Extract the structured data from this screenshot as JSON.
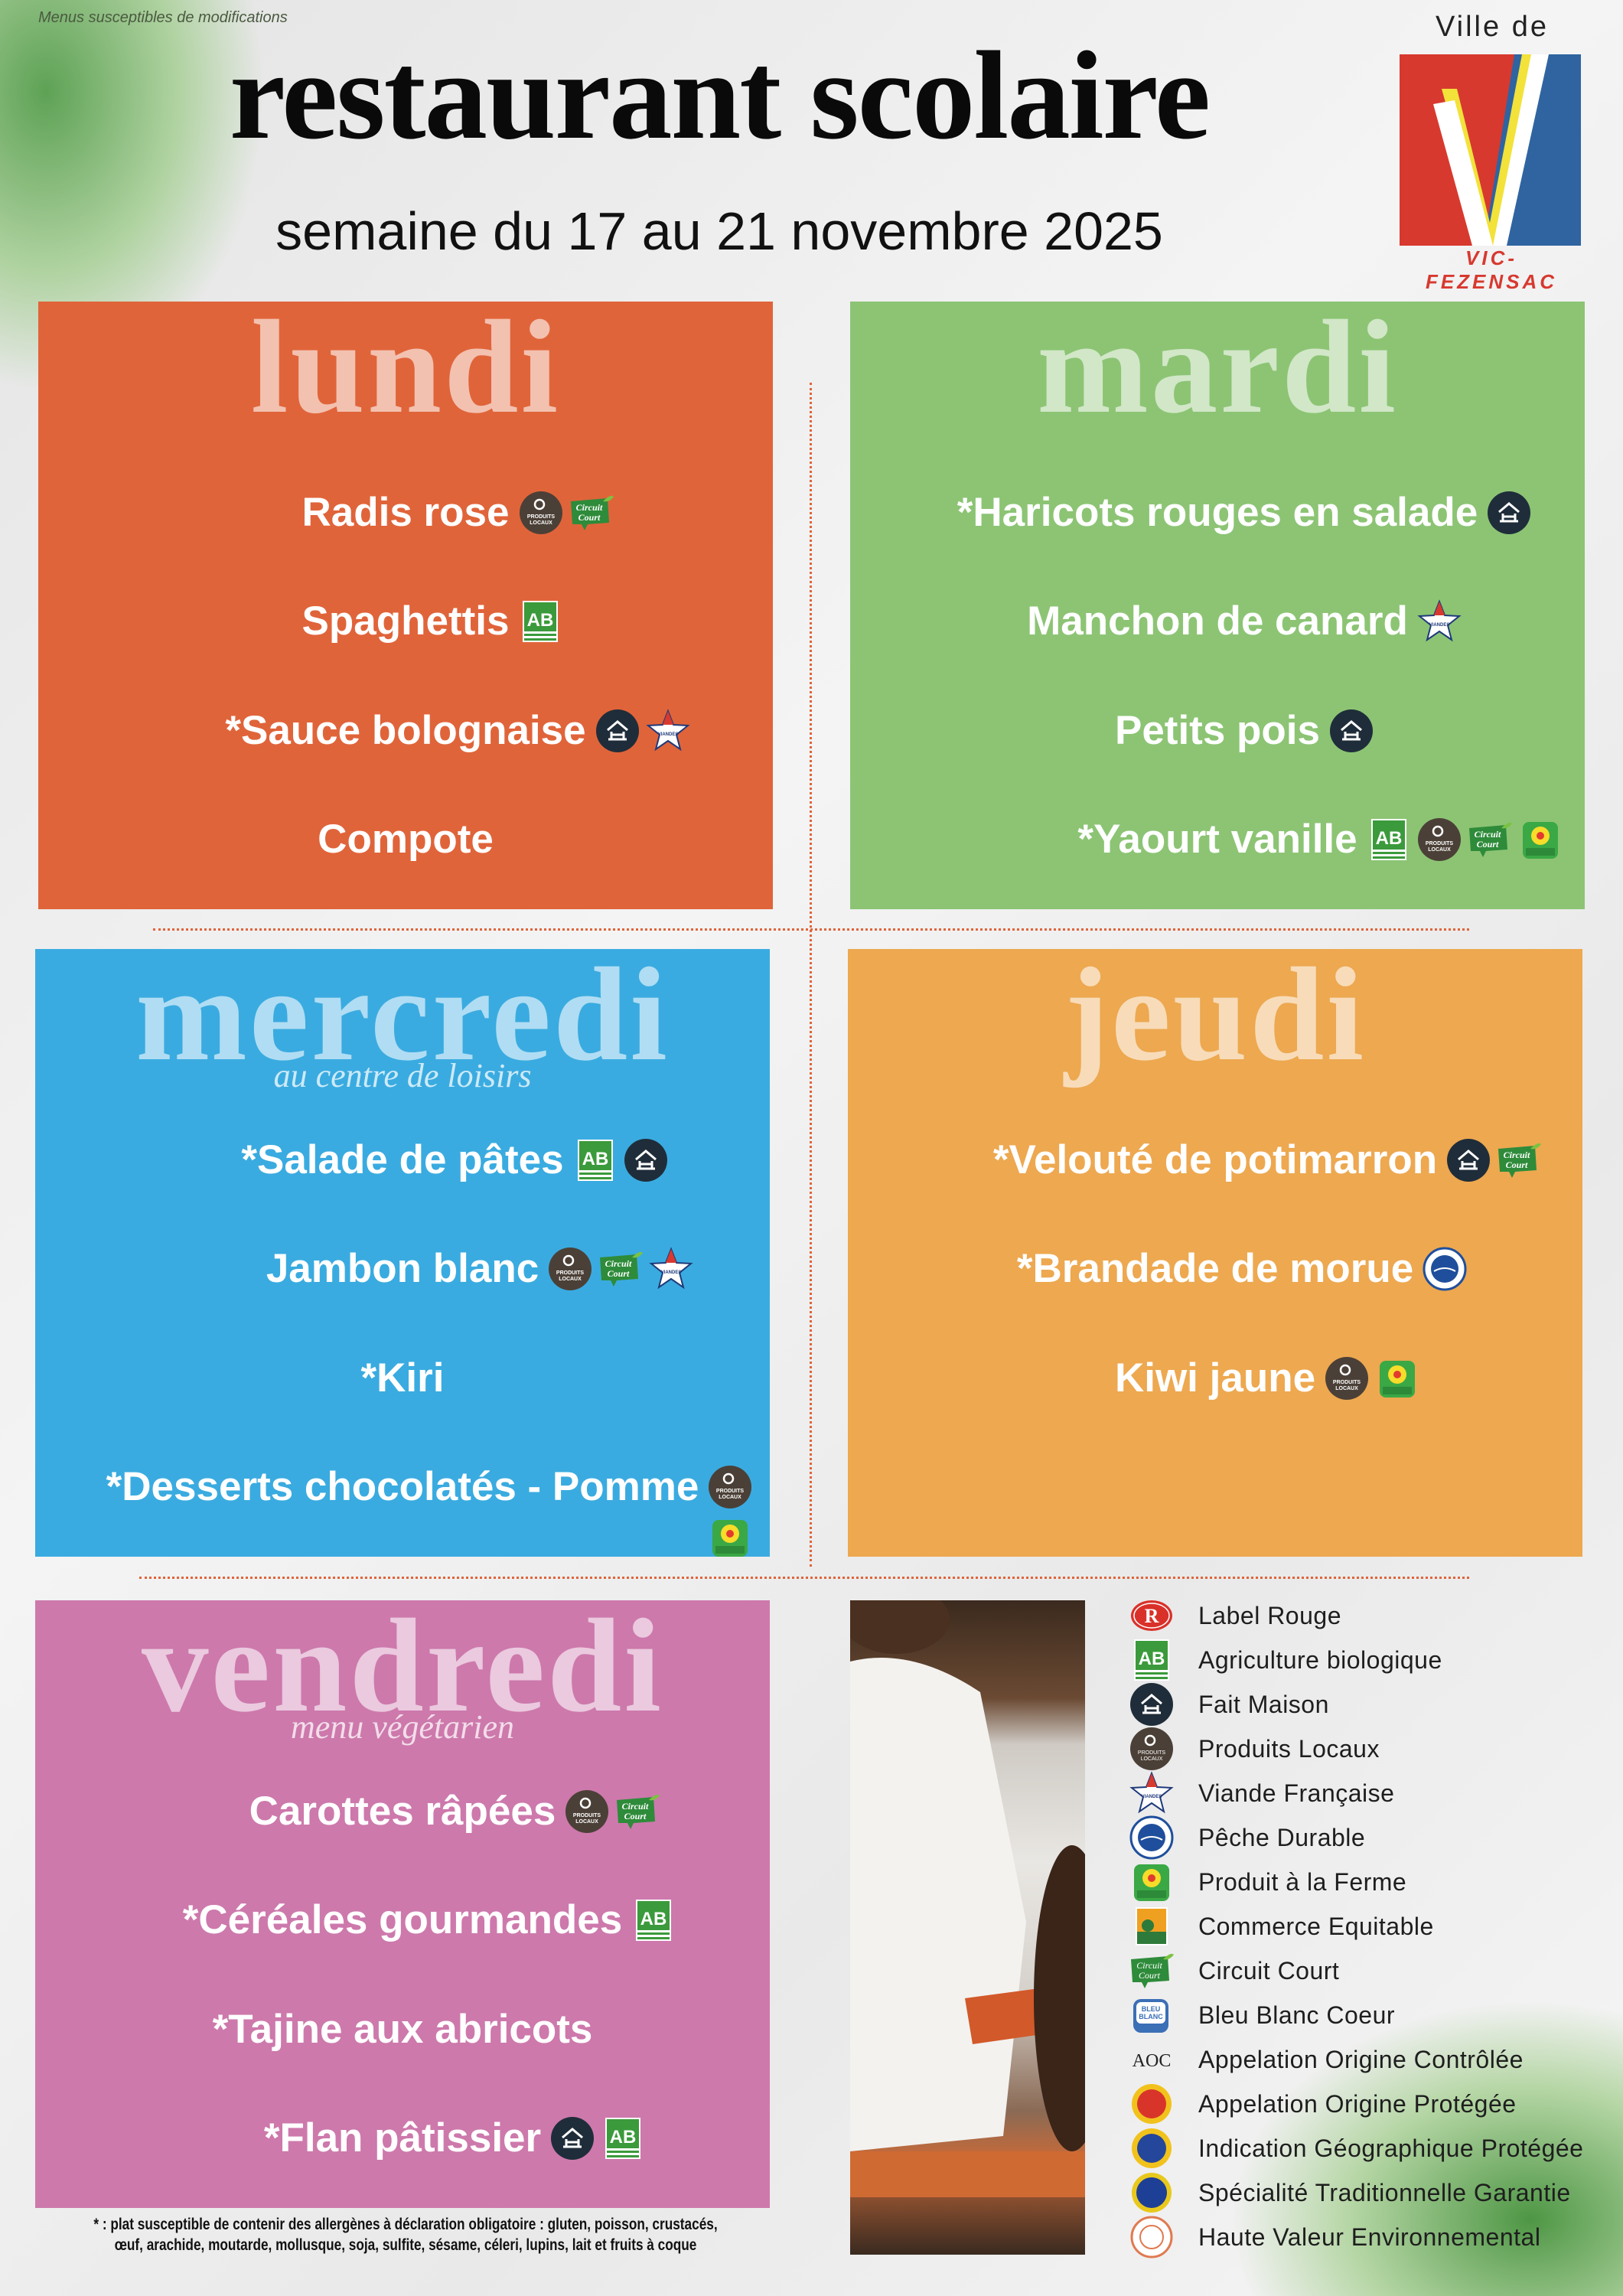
{
  "header": {
    "disclaimer": "Menus susceptibles de modifications",
    "title": "restaurant scolaire",
    "subtitle": "semaine du 17 au 21 novembre 2025",
    "logo": {
      "top": "Ville de",
      "name": "VIC-FEZENSAC",
      "colors": [
        "#d7392f",
        "#ffffff",
        "#f2e23a",
        "#2f64a0"
      ]
    }
  },
  "days": [
    {
      "key": "lundi",
      "title": "lundi",
      "color": "#e0643a",
      "items": [
        {
          "label": "Radis rose",
          "icons": [
            "produits-locaux",
            "circuit-court"
          ]
        },
        {
          "label": "Spaghettis",
          "icons": [
            "agriculture-biologique"
          ]
        },
        {
          "label": "*Sauce bolognaise",
          "icons": [
            "fait-maison",
            "viande-francaise"
          ]
        },
        {
          "label": "Compote",
          "icons": []
        }
      ]
    },
    {
      "key": "mardi",
      "title": "mardi",
      "color": "#8cc474",
      "items": [
        {
          "label": "*Haricots rouges en salade",
          "icons": [
            "fait-maison"
          ]
        },
        {
          "label": "Manchon de canard",
          "icons": [
            "viande-francaise"
          ]
        },
        {
          "label": "Petits pois",
          "icons": [
            "fait-maison"
          ]
        },
        {
          "label": "*Yaourt vanille",
          "icons": [
            "agriculture-biologique",
            "produits-locaux",
            "circuit-court",
            "produit-a-la-ferme"
          ]
        }
      ]
    },
    {
      "key": "mercredi",
      "title": "mercredi",
      "subtitle": "au centre de loisirs",
      "color": "#3aabe0",
      "items": [
        {
          "label": "*Salade de pâtes",
          "icons": [
            "agriculture-biologique",
            "fait-maison"
          ]
        },
        {
          "label": "Jambon blanc",
          "icons": [
            "produits-locaux",
            "circuit-court",
            "viande-francaise"
          ]
        },
        {
          "label": "*Kiri",
          "icons": []
        },
        {
          "label": "*Desserts chocolatés - Pomme",
          "icons": [
            "produits-locaux",
            "produit-a-la-ferme"
          ]
        }
      ]
    },
    {
      "key": "jeudi",
      "title": "jeudi",
      "color": "#eda850",
      "items": [
        {
          "label": "*Velouté de potimarron",
          "icons": [
            "fait-maison",
            "circuit-court"
          ]
        },
        {
          "label": "*Brandade de morue",
          "icons": [
            "peche-durable"
          ]
        },
        {
          "label": "Kiwi jaune",
          "icons": [
            "produits-locaux",
            "produit-a-la-ferme"
          ]
        }
      ]
    },
    {
      "key": "vendredi",
      "title": "vendredi",
      "subtitle": "menu végétarien",
      "color": "#cd79ac",
      "items": [
        {
          "label": "Carottes râpées",
          "icons": [
            "produits-locaux",
            "circuit-court"
          ]
        },
        {
          "label": "*Céréales gourmandes",
          "icons": [
            "agriculture-biologique"
          ]
        },
        {
          "label": "*Tajine aux abricots",
          "icons": []
        },
        {
          "label": "*Flan pâtissier",
          "icons": [
            "fait-maison",
            "agriculture-biologique"
          ]
        }
      ]
    }
  ],
  "legend": [
    {
      "icon": "label-rouge",
      "label": "Label Rouge"
    },
    {
      "icon": "agriculture-biologique",
      "label": "Agriculture biologique"
    },
    {
      "icon": "fait-maison",
      "label": "Fait Maison"
    },
    {
      "icon": "produits-locaux",
      "label": "Produits Locaux"
    },
    {
      "icon": "viande-francaise",
      "label": "Viande Française"
    },
    {
      "icon": "peche-durable",
      "label": "Pêche Durable"
    },
    {
      "icon": "produit-a-la-ferme",
      "label": "Produit à la Ferme"
    },
    {
      "icon": "commerce-equitable",
      "label": "Commerce Equitable"
    },
    {
      "icon": "circuit-court",
      "label": "Circuit Court"
    },
    {
      "icon": "bleu-blanc-coeur",
      "label": "Bleu Blanc Coeur"
    },
    {
      "icon": "aoc",
      "label": "Appelation Origine Contrôlée"
    },
    {
      "icon": "aop",
      "label": "Appelation Origine Protégée"
    },
    {
      "icon": "igp",
      "label": "Indication Géographique Protégée"
    },
    {
      "icon": "stg",
      "label": "Spécialité Traditionnelle Garantie"
    },
    {
      "icon": "hve",
      "label": "Haute Valeur Environnemental"
    }
  ],
  "footnote": {
    "line1": "* : plat susceptible de contenir des allergènes à déclaration obligatoire : gluten, poisson, crustacés,",
    "line2": "œuf, arachide, moutarde, mollusque, soja, sulfite, sésame, céleri, lupins, lait et fruits à coque"
  }
}
